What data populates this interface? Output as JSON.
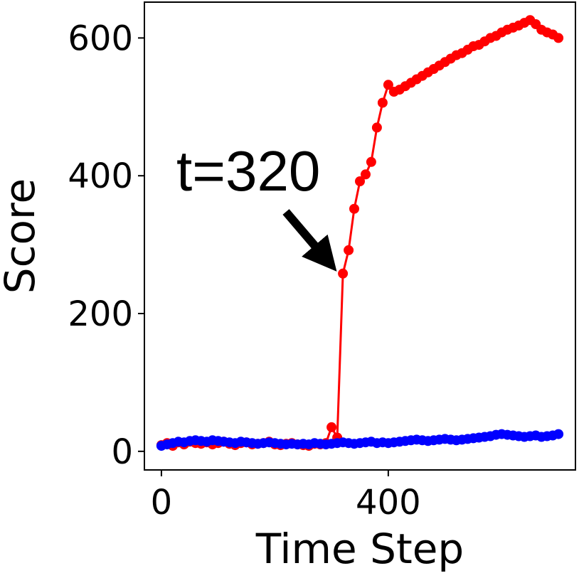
{
  "chart_data": {
    "type": "line",
    "xlabel": "Time Step",
    "ylabel": "Score",
    "xlim": [
      -30,
      730
    ],
    "ylim": [
      -27,
      652
    ],
    "xticks": [
      0,
      400
    ],
    "yticks": [
      0,
      200,
      400,
      600
    ],
    "grid": false,
    "annotation": {
      "text": "t=320",
      "target": {
        "x": 320,
        "y": 260
      }
    },
    "colors": {
      "red": "#ff0000",
      "blue": "#0000ff"
    },
    "series": [
      {
        "color": "red",
        "x": [
          0,
          10,
          20,
          30,
          40,
          50,
          60,
          70,
          80,
          90,
          100,
          110,
          120,
          130,
          140,
          150,
          160,
          170,
          180,
          190,
          200,
          210,
          220,
          230,
          240,
          250,
          260,
          270,
          280,
          290,
          300,
          310,
          320,
          330,
          340,
          350,
          360,
          370,
          380,
          390,
          400,
          410,
          420,
          430,
          440,
          450,
          460,
          470,
          480,
          490,
          500,
          510,
          520,
          530,
          540,
          550,
          560,
          570,
          580,
          590,
          600,
          610,
          620,
          630,
          640,
          650,
          660,
          670,
          680,
          690,
          700
        ],
        "y": [
          9,
          12,
          8,
          13,
          10,
          14,
          12,
          11,
          13,
          10,
          12,
          14,
          11,
          9,
          12,
          13,
          10,
          11,
          12,
          14,
          10,
          9,
          11,
          12,
          10,
          9,
          8,
          11,
          10,
          12,
          35,
          20,
          258,
          292,
          352,
          392,
          402,
          420,
          470,
          506,
          532,
          522,
          525,
          530,
          535,
          540,
          545,
          550,
          555,
          560,
          565,
          570,
          575,
          578,
          583,
          588,
          590,
          595,
          600,
          603,
          608,
          612,
          615,
          618,
          622,
          626,
          620,
          612,
          608,
          605,
          600
        ]
      },
      {
        "color": "blue",
        "x": [
          0,
          10,
          20,
          30,
          40,
          50,
          60,
          70,
          80,
          90,
          100,
          110,
          120,
          130,
          140,
          150,
          160,
          170,
          180,
          190,
          200,
          210,
          220,
          230,
          240,
          250,
          260,
          270,
          280,
          290,
          300,
          310,
          320,
          330,
          340,
          350,
          360,
          370,
          380,
          390,
          400,
          410,
          420,
          430,
          440,
          450,
          460,
          470,
          480,
          490,
          500,
          510,
          520,
          530,
          540,
          550,
          560,
          570,
          580,
          590,
          600,
          610,
          620,
          630,
          640,
          650,
          660,
          670,
          680,
          690,
          700
        ],
        "y": [
          8,
          10,
          12,
          14,
          13,
          15,
          16,
          15,
          14,
          16,
          15,
          14,
          13,
          12,
          14,
          13,
          12,
          11,
          12,
          13,
          12,
          11,
          10,
          11,
          10,
          11,
          10,
          12,
          11,
          10,
          11,
          12,
          13,
          12,
          11,
          12,
          13,
          14,
          12,
          13,
          12,
          13,
          14,
          15,
          16,
          17,
          16,
          15,
          16,
          17,
          18,
          17,
          16,
          17,
          18,
          19,
          20,
          21,
          22,
          24,
          25,
          24,
          23,
          22,
          21,
          22,
          23,
          21,
          22,
          23,
          25
        ]
      }
    ]
  }
}
